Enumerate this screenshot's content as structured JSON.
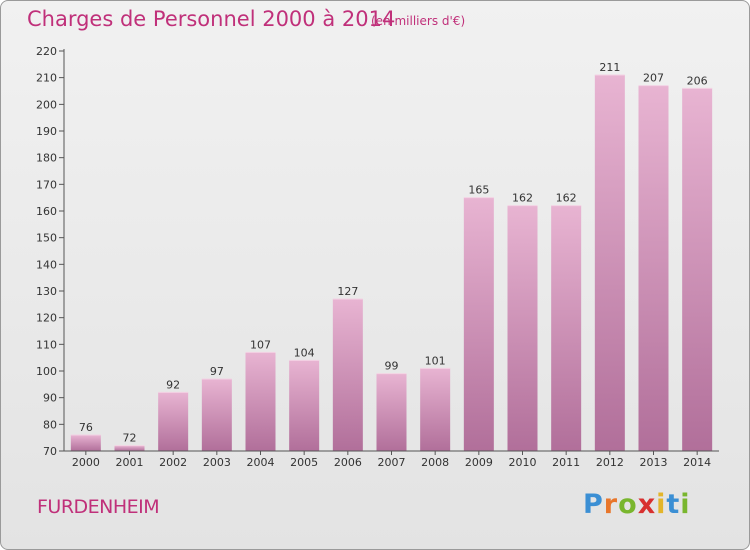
{
  "header": {
    "title": "Charges de Personnel 2000 à 2014",
    "subtitle": "(en milliers d'€)"
  },
  "footer": {
    "place": "FURDENHEIM",
    "logo_letters": [
      "P",
      "r",
      "o",
      "x",
      "i",
      "t",
      "i"
    ],
    "logo_colors": [
      "#3b8fd4",
      "#e8762b",
      "#79b62e",
      "#d8302f",
      "#e3b52a",
      "#3b8fd4",
      "#79b62e"
    ]
  },
  "colors": {
    "title": "#c0307a",
    "bar_light": "#e8b4d2",
    "bar_dark": "#b16f9a",
    "axis": "#555555",
    "grid": "#cfcfcf"
  },
  "chart_data": {
    "type": "bar",
    "title": "Charges de Personnel 2000 à 2014",
    "subtitle": "(en milliers d'€)",
    "xlabel": "",
    "ylabel": "",
    "categories": [
      "2000",
      "2001",
      "2002",
      "2003",
      "2004",
      "2005",
      "2006",
      "2007",
      "2008",
      "2009",
      "2010",
      "2011",
      "2012",
      "2013",
      "2014"
    ],
    "values": [
      76,
      72,
      92,
      97,
      107,
      104,
      127,
      99,
      101,
      165,
      162,
      162,
      211,
      207,
      206
    ],
    "ylim": [
      70,
      220
    ],
    "yticks": [
      70,
      80,
      90,
      100,
      110,
      120,
      130,
      140,
      150,
      160,
      170,
      180,
      190,
      200,
      210,
      220
    ],
    "grid": false,
    "legend": "none"
  }
}
